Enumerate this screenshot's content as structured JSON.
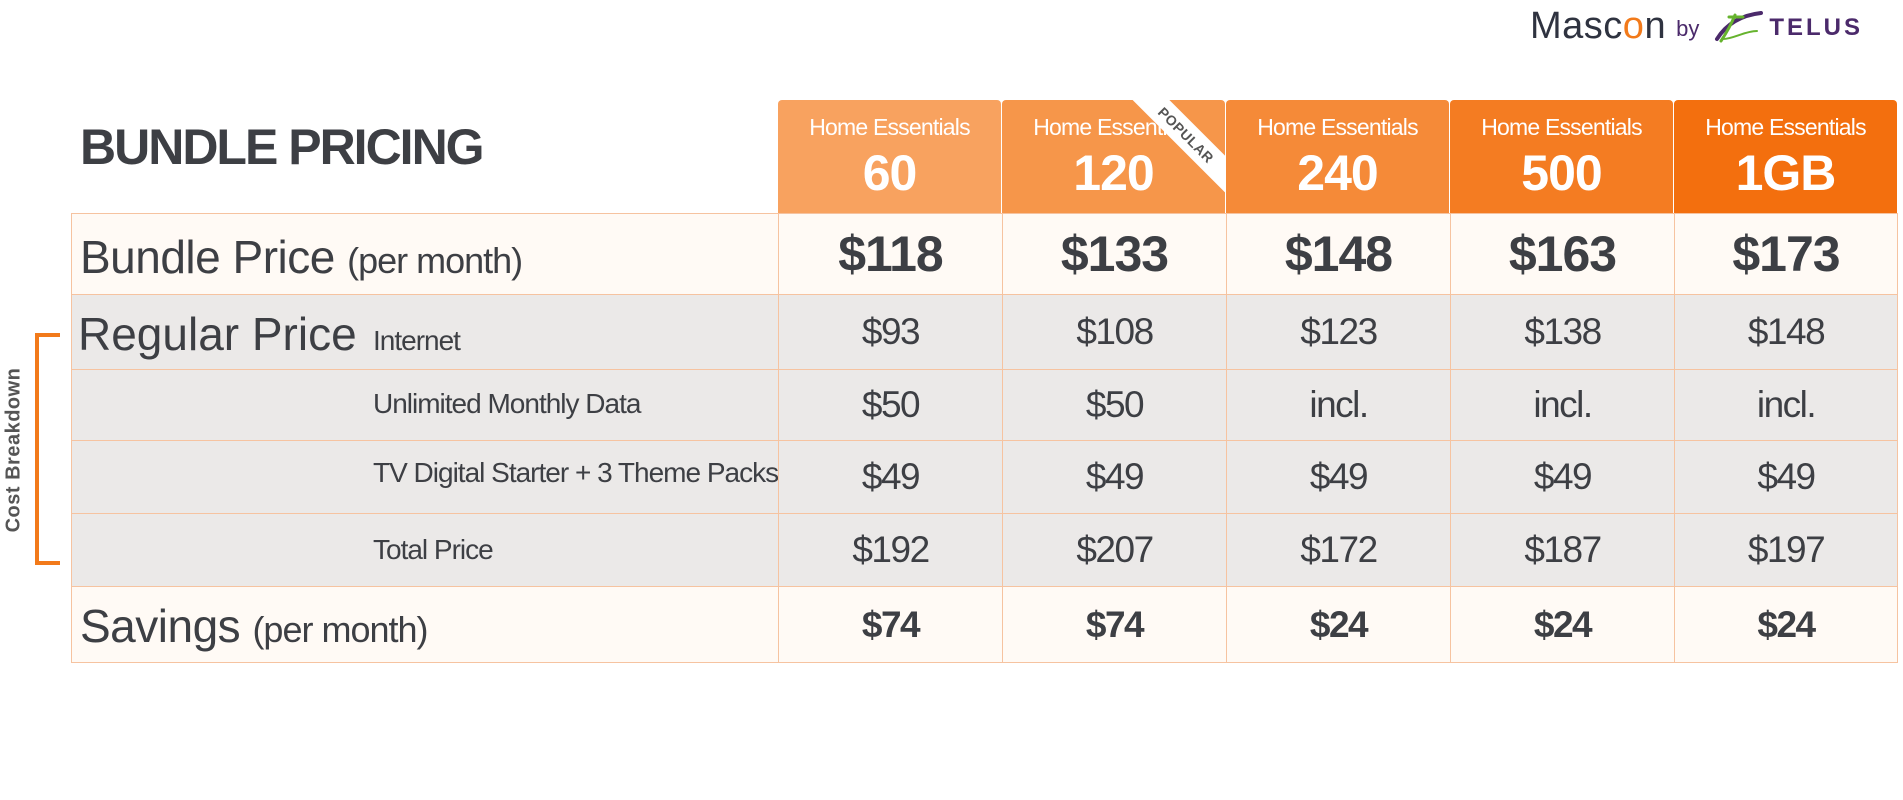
{
  "brand": {
    "name_prefix": "Masc",
    "name_o": "o",
    "name_suffix": "n",
    "by": "by",
    "partner": "TELUS",
    "icon": "telus-logo-icon",
    "colors": {
      "orange": "#f27a1a",
      "purple": "#4b2a6b"
    }
  },
  "title": "BUNDLE PRICING",
  "plans": [
    {
      "name": "Home Essentials",
      "speed": "60",
      "color": "#f8a25f"
    },
    {
      "name": "Home Essentials",
      "speed": "120",
      "color": "#f6964a",
      "ribbon": "POPULAR"
    },
    {
      "name": "Home Essentials",
      "speed": "240",
      "color": "#f58a38"
    },
    {
      "name": "Home Essentials",
      "speed": "500",
      "color": "#f47c22"
    },
    {
      "name": "Home Essentials",
      "speed": "1GB",
      "color": "#f36f0e"
    }
  ],
  "rows": {
    "bundle": {
      "label": "Bundle Price",
      "sub": "(per month)",
      "values": [
        "$118",
        "$133",
        "$148",
        "$163",
        "$173"
      ]
    },
    "regular": {
      "label": "Regular Price"
    },
    "internet": {
      "label": "Internet",
      "values": [
        "$93",
        "$108",
        "$123",
        "$138",
        "$148"
      ]
    },
    "data": {
      "label": "Unlimited Monthly Data",
      "values": [
        "$50",
        "$50",
        "incl.",
        "incl.",
        "incl."
      ]
    },
    "tv": {
      "label": "TV Digital Starter + 3 Theme Packs",
      "values": [
        "$49",
        "$49",
        "$49",
        "$49",
        "$49"
      ]
    },
    "total": {
      "label": "Total Price",
      "values": [
        "$192",
        "$207",
        "$172",
        "$187",
        "$197"
      ]
    },
    "savings": {
      "label": "Savings",
      "sub": "(per month)",
      "values": [
        "$74",
        "$74",
        "$24",
        "$24",
        "$24"
      ]
    }
  },
  "breakdown_label": "Cost Breakdown"
}
